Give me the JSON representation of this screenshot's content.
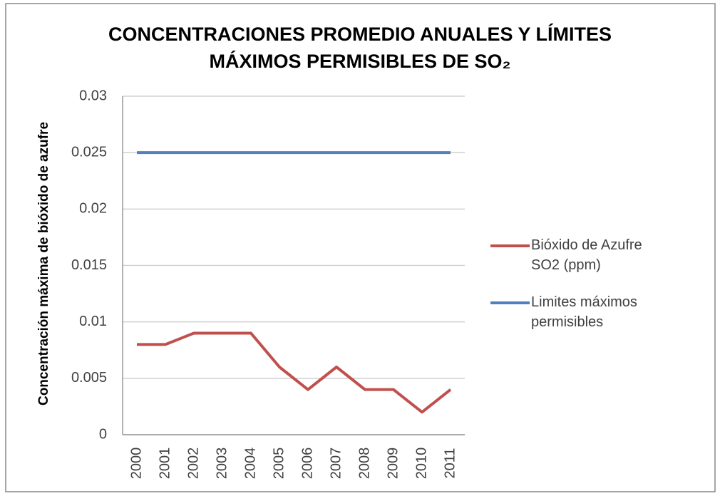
{
  "chart_data": {
    "type": "line",
    "title": [
      "CONCENTRACIONES PROMEDIO ANUALES Y LÍMITES",
      "MÁXIMOS PERMISIBLES DE SO₂"
    ],
    "y_label": "Concentración máxima de bióxido de azufre",
    "categories": [
      "2000",
      "2001",
      "2002",
      "2003",
      "2004",
      "2005",
      "2006",
      "2007",
      "2008",
      "2009",
      "2010",
      "2011"
    ],
    "series": [
      {
        "name": "Bióxido de Azufre SO2 (ppm)",
        "color": "#c0504d",
        "values": [
          0.008,
          0.008,
          0.009,
          0.009,
          0.009,
          0.006,
          0.004,
          0.006,
          0.004,
          0.004,
          0.002,
          0.004
        ]
      },
      {
        "name": "Limites máximos permisibles",
        "color": "#4f81bd",
        "values": [
          0.025,
          0.025,
          0.025,
          0.025,
          0.025,
          0.025,
          0.025,
          0.025,
          0.025,
          0.025,
          0.025,
          0.025
        ]
      }
    ],
    "ylim": [
      0,
      0.03
    ],
    "yticks": [
      0,
      0.005,
      0.01,
      0.015,
      0.02,
      0.025,
      0.03
    ],
    "grid": true,
    "legend": "right"
  }
}
